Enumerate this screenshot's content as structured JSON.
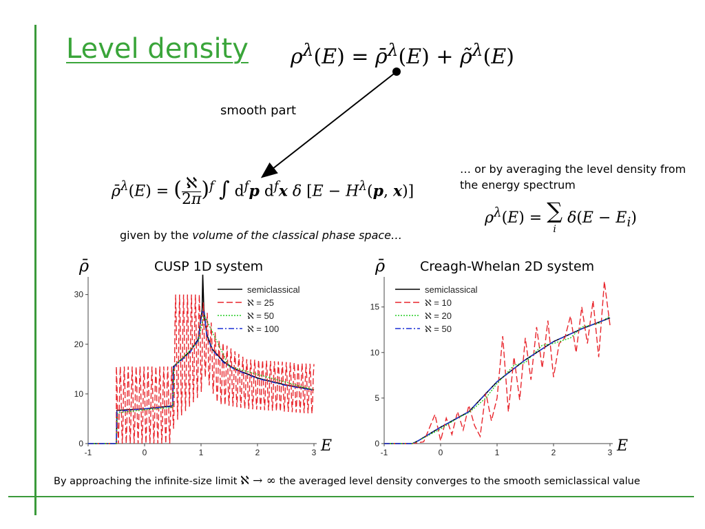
{
  "slide": {
    "title": "Level density",
    "eq_top": "ρ^λ(E) = ρ̄^λ(E) + ρ̃^λ(E)",
    "smooth_label": "smooth part",
    "avg_note": "… or by averaging the level density from the energy spectrum",
    "eq_smooth": "ρ̄^λ(E) = (ℵ/2π)^f ∫ d^f p d^f x δ[E − H^λ(p,x)]",
    "eq_sum": "ρ^λ(E) = Σ_i δ(E − E_i)",
    "given_prefix": "given by the ",
    "given_italic": "volume of the classical phase space…",
    "bottom_pre": "By approaching the infinite-size limit",
    "bottom_math": "ℵ → ∞",
    "bottom_post": "the averaged level density converges to the smooth semiclassical value",
    "colors": {
      "accent": "#3aa53a",
      "semiclassical": "#000000",
      "red": "#e8232a",
      "green": "#22cc22",
      "blue": "#1a2fd6"
    }
  },
  "chart_data": [
    {
      "type": "line",
      "title": "CUSP 1D system",
      "ylabel": "ρ̄",
      "xlabel": "E",
      "xlim": [
        -1,
        3
      ],
      "ylim": [
        0,
        33
      ],
      "xticks": [
        "-1",
        "0",
        "1",
        "2",
        "3"
      ],
      "yticks": [
        "0",
        "10",
        "20",
        "30"
      ],
      "ytick_values": [
        0,
        10,
        20,
        30
      ],
      "legend_position": "top-right",
      "series": [
        {
          "name": "semiclassical",
          "style": "solid",
          "color": "#000000",
          "x": [
            -1,
            -0.5,
            -0.49,
            0,
            0.5,
            0.51,
            0.8,
            0.95,
            1.02,
            1.03,
            1.05,
            1.1,
            1.2,
            1.4,
            1.6,
            2,
            2.5,
            3
          ],
          "y": [
            0,
            0,
            6.7,
            7.0,
            7.6,
            15.5,
            18.5,
            21,
            27,
            34,
            27,
            22,
            19,
            16.5,
            15,
            13.2,
            11.8,
            10.8
          ]
        },
        {
          "name": "ℵ = 25",
          "style": "dashed",
          "color": "#e8232a",
          "env_x": [
            -0.5,
            0.5,
            0.52,
            1.0,
            1.05,
            1.3,
            1.8,
            3.0
          ],
          "env_lo": [
            0,
            0,
            4,
            10,
            14,
            8,
            7,
            6
          ],
          "env_hi": [
            15.5,
            15.5,
            30,
            30,
            28,
            21,
            17,
            16
          ]
        },
        {
          "name": "ℵ = 50",
          "style": "dotted",
          "color": "#22cc22",
          "x": [
            -1,
            -0.5,
            -0.48,
            0,
            0.5,
            0.52,
            0.95,
            1.05,
            1.5,
            3
          ],
          "y": [
            0,
            0,
            6.2,
            6.8,
            7.3,
            15.5,
            20.5,
            26,
            15.5,
            10.8
          ]
        },
        {
          "name": "ℵ = 100",
          "style": "dashdot",
          "color": "#1a2fd6",
          "x": [
            -1,
            -0.5,
            -0.49,
            0,
            0.5,
            0.51,
            0.8,
            0.95,
            1.02,
            1.05,
            1.1,
            1.2,
            1.4,
            1.6,
            2,
            2.5,
            3
          ],
          "y": [
            0,
            0,
            6.5,
            7.0,
            7.5,
            15.3,
            18.3,
            20.8,
            26.5,
            26.5,
            21.8,
            18.8,
            16.3,
            14.9,
            13.1,
            11.7,
            10.7
          ]
        }
      ]
    },
    {
      "type": "line",
      "title": "Creagh-Whelan 2D system",
      "ylabel": "ρ̄",
      "xlabel": "E",
      "xlim": [
        -1,
        3
      ],
      "ylim": [
        0,
        18
      ],
      "xticks": [
        "-1",
        "0",
        "1",
        "2",
        "3"
      ],
      "yticks": [
        "0",
        "5",
        "10",
        "15"
      ],
      "ytick_values": [
        0,
        5,
        10,
        15
      ],
      "legend_position": "top-left",
      "series": [
        {
          "name": "semiclassical",
          "style": "solid",
          "color": "#000000",
          "x": [
            -1,
            -0.5,
            -0.4,
            0,
            0.5,
            1,
            1.5,
            2,
            2.5,
            3
          ],
          "y": [
            0,
            0,
            0.3,
            1.8,
            3.5,
            6.8,
            9.2,
            11.2,
            12.6,
            13.8
          ]
        },
        {
          "name": "ℵ = 10",
          "style": "dashed",
          "color": "#e8232a",
          "x": [
            -1,
            -0.5,
            -0.3,
            -0.1,
            0,
            0.1,
            0.2,
            0.3,
            0.4,
            0.5,
            0.6,
            0.7,
            0.8,
            0.9,
            1.0,
            1.1,
            1.2,
            1.3,
            1.4,
            1.5,
            1.6,
            1.7,
            1.8,
            1.9,
            2.0,
            2.1,
            2.2,
            2.3,
            2.4,
            2.5,
            2.6,
            2.7,
            2.8,
            2.9,
            3.0
          ],
          "y": [
            0,
            0,
            0.2,
            3.2,
            0.3,
            2.8,
            1.0,
            3.5,
            1.5,
            4.2,
            2.0,
            0.8,
            5.6,
            2.5,
            5.0,
            11.8,
            3.5,
            9.5,
            4.8,
            11.6,
            7.0,
            12.8,
            8.3,
            13.5,
            7.3,
            11.0,
            11.6,
            14.0,
            10.0,
            15.0,
            11.0,
            15.7,
            9.5,
            17.8,
            13.0
          ]
        },
        {
          "name": "ℵ = 20",
          "style": "dotted",
          "color": "#22cc22",
          "x": [
            -1,
            -0.5,
            -0.4,
            0,
            0.3,
            0.5,
            0.8,
            1,
            1.3,
            1.5,
            1.8,
            2,
            2.3,
            2.5,
            2.8,
            3
          ],
          "y": [
            0,
            0,
            0.3,
            1.6,
            2.8,
            3.4,
            5.0,
            6.6,
            8.6,
            8.9,
            10.8,
            11.0,
            11.6,
            12.8,
            13.2,
            14.0
          ]
        },
        {
          "name": "ℵ = 50",
          "style": "dashdot",
          "color": "#1a2fd6",
          "x": [
            -1,
            -0.5,
            -0.4,
            0,
            0.5,
            1,
            1.5,
            2,
            2.5,
            3
          ],
          "y": [
            0,
            0,
            0.3,
            1.8,
            3.5,
            6.8,
            9.2,
            11.2,
            12.6,
            13.8
          ]
        }
      ]
    }
  ]
}
